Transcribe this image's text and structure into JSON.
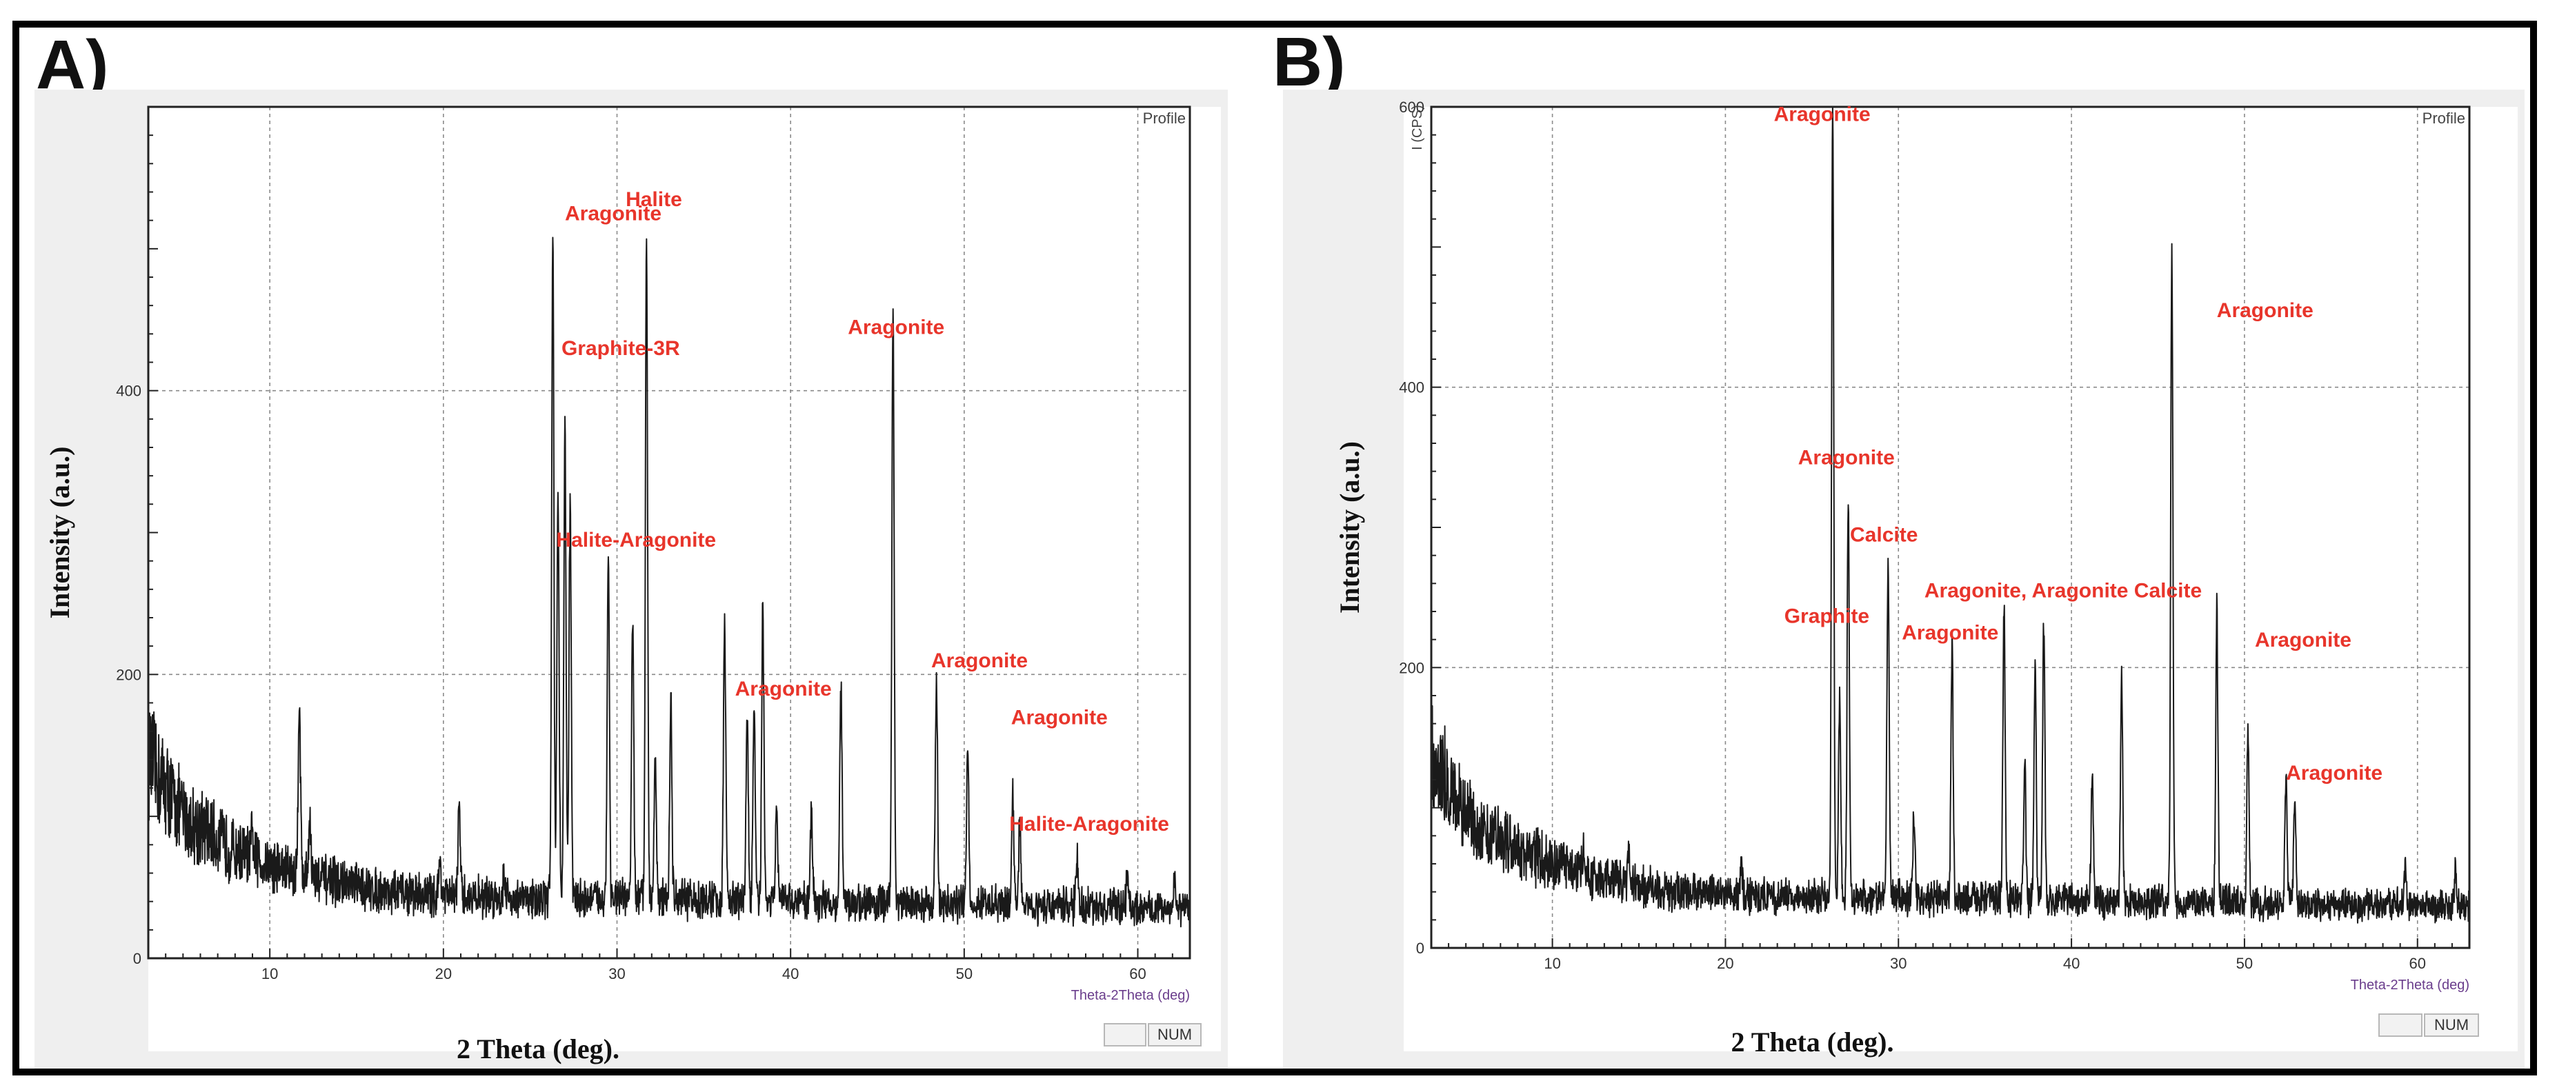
{
  "panels": [
    {
      "panel_label": "A)",
      "profile_label": "Profile",
      "x_axis_caption": "Theta-2Theta (deg)",
      "status_num": "NUM",
      "cps_label": ""
    },
    {
      "panel_label": "B)",
      "profile_label": "Profile",
      "x_axis_caption": "Theta-2Theta (deg)",
      "status_num": "NUM",
      "cps_label": "I (CPS)"
    }
  ],
  "chart_data": [
    {
      "type": "line",
      "title": "",
      "xlabel": "2 Theta (deg).",
      "ylabel": "Intensity (a.u.)",
      "xlim": [
        3,
        63
      ],
      "ylim": [
        0,
        600
      ],
      "xticks": [
        10,
        20,
        30,
        40,
        50,
        60
      ],
      "yticks": [
        0,
        200,
        400
      ],
      "grid": true,
      "baseline_points": [
        [
          3,
          140
        ],
        [
          5,
          100
        ],
        [
          8,
          75
        ],
        [
          12,
          58
        ],
        [
          16,
          48
        ],
        [
          20,
          44
        ],
        [
          25,
          42
        ],
        [
          30,
          42
        ],
        [
          40,
          40
        ],
        [
          50,
          38
        ],
        [
          63,
          35
        ]
      ],
      "peaks": [
        [
          9.0,
          85
        ],
        [
          11.7,
          185
        ],
        [
          12.3,
          100
        ],
        [
          19.8,
          70
        ],
        [
          20.9,
          105
        ],
        [
          23.5,
          60
        ],
        [
          26.3,
          515
        ],
        [
          26.6,
          330
        ],
        [
          27.0,
          375
        ],
        [
          27.3,
          315
        ],
        [
          29.5,
          285
        ],
        [
          30.9,
          235
        ],
        [
          31.7,
          510
        ],
        [
          32.2,
          150
        ],
        [
          33.1,
          180
        ],
        [
          36.2,
          240
        ],
        [
          37.5,
          170
        ],
        [
          37.9,
          180
        ],
        [
          38.4,
          245
        ],
        [
          39.2,
          105
        ],
        [
          41.2,
          110
        ],
        [
          42.9,
          190
        ],
        [
          45.9,
          460
        ],
        [
          48.4,
          195
        ],
        [
          50.2,
          155
        ],
        [
          52.8,
          115
        ],
        [
          53.2,
          95
        ],
        [
          56.5,
          70
        ],
        [
          59.4,
          60
        ],
        [
          62.1,
          58
        ]
      ],
      "annotations": [
        {
          "text": "Aragonite",
          "x": 27.0,
          "y": 520
        },
        {
          "text": "Halite",
          "x": 30.5,
          "y": 530
        },
        {
          "text": "Graphite-3R",
          "x": 26.8,
          "y": 425
        },
        {
          "text": "Aragonite",
          "x": 43.3,
          "y": 440
        },
        {
          "text": "Halite-Aragonite",
          "x": 26.5,
          "y": 290
        },
        {
          "text": "Aragonite",
          "x": 48.1,
          "y": 205
        },
        {
          "text": "Aragonite",
          "x": 36.8,
          "y": 185
        },
        {
          "text": "Aragonite",
          "x": 52.7,
          "y": 165
        },
        {
          "text": "Halite-Aragonite",
          "x": 52.6,
          "y": 90
        }
      ]
    },
    {
      "type": "line",
      "title": "",
      "xlabel": "2 Theta (deg).",
      "ylabel": "Intensity (a.u.)",
      "xlim": [
        3,
        63
      ],
      "ylim": [
        0,
        600
      ],
      "xticks": [
        10,
        20,
        30,
        40,
        50,
        60
      ],
      "yticks": [
        0,
        200,
        400,
        600
      ],
      "grid": true,
      "baseline_points": [
        [
          3,
          140
        ],
        [
          5,
          95
        ],
        [
          8,
          70
        ],
        [
          12,
          52
        ],
        [
          16,
          42
        ],
        [
          20,
          38
        ],
        [
          25,
          36
        ],
        [
          30,
          36
        ],
        [
          40,
          34
        ],
        [
          50,
          32
        ],
        [
          63,
          30
        ]
      ],
      "peaks": [
        [
          11.8,
          70
        ],
        [
          14.4,
          65
        ],
        [
          20.9,
          60
        ],
        [
          26.2,
          605
        ],
        [
          26.6,
          180
        ],
        [
          27.1,
          325
        ],
        [
          29.4,
          280
        ],
        [
          30.9,
          95
        ],
        [
          33.1,
          215
        ],
        [
          36.1,
          245
        ],
        [
          37.3,
          130
        ],
        [
          37.9,
          205
        ],
        [
          38.4,
          230
        ],
        [
          41.2,
          125
        ],
        [
          42.9,
          190
        ],
        [
          45.8,
          500
        ],
        [
          48.4,
          240
        ],
        [
          50.2,
          155
        ],
        [
          52.4,
          125
        ],
        [
          52.9,
          105
        ],
        [
          59.3,
          60
        ],
        [
          62.2,
          55
        ]
      ],
      "annotations": [
        {
          "text": "Aragonite",
          "x": 22.8,
          "y": 590
        },
        {
          "text": "Aragonite",
          "x": 48.4,
          "y": 450
        },
        {
          "text": "Aragonite",
          "x": 24.2,
          "y": 345
        },
        {
          "text": "Calcite",
          "x": 27.2,
          "y": 290
        },
        {
          "text": "Aragonite, Aragonite Calcite",
          "x": 31.5,
          "y": 250
        },
        {
          "text": "Graphite",
          "x": 23.4,
          "y": 232
        },
        {
          "text": "Aragonite",
          "x": 30.2,
          "y": 220
        },
        {
          "text": "Aragonite",
          "x": 50.6,
          "y": 215
        },
        {
          "text": "Aragonite",
          "x": 52.4,
          "y": 120
        }
      ]
    }
  ]
}
